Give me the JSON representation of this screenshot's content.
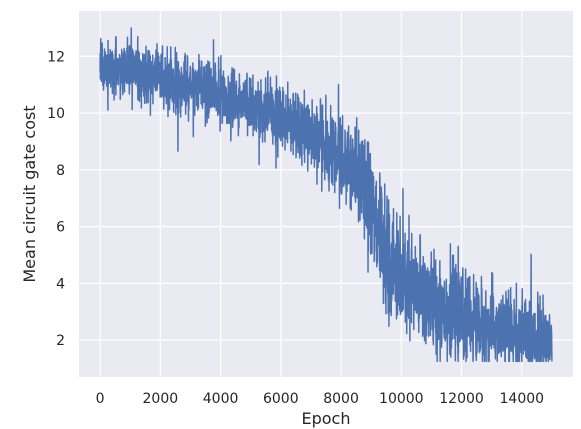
{
  "chart_data": {
    "type": "line",
    "title": "",
    "xlabel": "Epoch",
    "ylabel": "Mean circuit gate cost",
    "xlim": [
      -700,
      15700
    ],
    "ylim": [
      0.7,
      13.6
    ],
    "xticks": [
      0,
      2000,
      4000,
      6000,
      8000,
      10000,
      12000,
      14000
    ],
    "yticks": [
      2,
      4,
      6,
      8,
      10,
      12
    ],
    "grid": true,
    "legend": "none",
    "colors": {
      "background": "#eaeaf2",
      "grid": "#ffffff",
      "line": "#4c72b0"
    },
    "series": [
      {
        "x_start": 0,
        "x_end": 15000,
        "trend": [
          [
            0,
            11.6
          ],
          [
            500,
            11.6
          ],
          [
            1000,
            11.5
          ],
          [
            1500,
            11.4
          ],
          [
            2000,
            11.3
          ],
          [
            2500,
            11.1
          ],
          [
            3000,
            11.0
          ],
          [
            3500,
            10.8
          ],
          [
            4000,
            10.6
          ],
          [
            4500,
            10.4
          ],
          [
            5000,
            10.3
          ],
          [
            5500,
            10.1
          ],
          [
            6000,
            9.9
          ],
          [
            6500,
            9.6
          ],
          [
            7000,
            9.3
          ],
          [
            7500,
            8.9
          ],
          [
            8000,
            8.4
          ],
          [
            8500,
            7.9
          ],
          [
            9000,
            6.6
          ],
          [
            9500,
            5.0
          ],
          [
            10000,
            4.1
          ],
          [
            10500,
            3.7
          ],
          [
            11000,
            3.4
          ],
          [
            11500,
            3.1
          ],
          [
            12000,
            2.8
          ],
          [
            12500,
            2.6
          ],
          [
            13000,
            2.4
          ],
          [
            13500,
            2.3
          ],
          [
            14000,
            2.2
          ],
          [
            14500,
            2.1
          ],
          [
            15000,
            2.0
          ]
        ],
        "noise": [
          [
            0,
            0.45
          ],
          [
            4000,
            0.55
          ],
          [
            7000,
            0.6
          ],
          [
            8500,
            0.75
          ],
          [
            9000,
            1.0
          ],
          [
            10000,
            1.0
          ],
          [
            12000,
            0.75
          ],
          [
            15000,
            0.65
          ]
        ],
        "y_min_observed": 1.25,
        "y_max_observed": 13.0
      }
    ]
  }
}
